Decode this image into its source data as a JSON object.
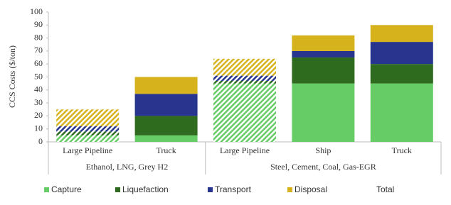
{
  "chart_data": {
    "type": "stacked_bar",
    "y_label": "CCS Costs ($/ton)",
    "categories": [
      "Large Pipeline",
      "Truck",
      "Large Pipeline",
      "Ship",
      "Truck"
    ],
    "groups": [
      {
        "label": "Ethanol, LNG, Grey H2",
        "count": 2
      },
      {
        "label": "Steel, Cement, Coal, Gas-EGR",
        "count": 3
      }
    ],
    "hatched": [
      true,
      false,
      true,
      false,
      false
    ],
    "series": [
      {
        "name": "Capture",
        "color": "#66cc66",
        "values": [
          5,
          5,
          45,
          45,
          45
        ]
      },
      {
        "name": "Liquefaction",
        "color": "#2e6b1f",
        "values": [
          3,
          15,
          2,
          20,
          15
        ]
      },
      {
        "name": "Transport",
        "color": "#28358f",
        "values": [
          4,
          17,
          4,
          5,
          17
        ]
      },
      {
        "name": "Disposal",
        "color": "#d6b21c",
        "values": [
          13,
          13,
          13,
          12,
          13
        ]
      }
    ],
    "extra_legend_entries": [
      "Total"
    ],
    "ylim": [
      0,
      100
    ],
    "yticks": [
      0,
      10,
      20,
      30,
      40,
      50,
      60,
      70,
      80,
      90,
      100
    ]
  }
}
